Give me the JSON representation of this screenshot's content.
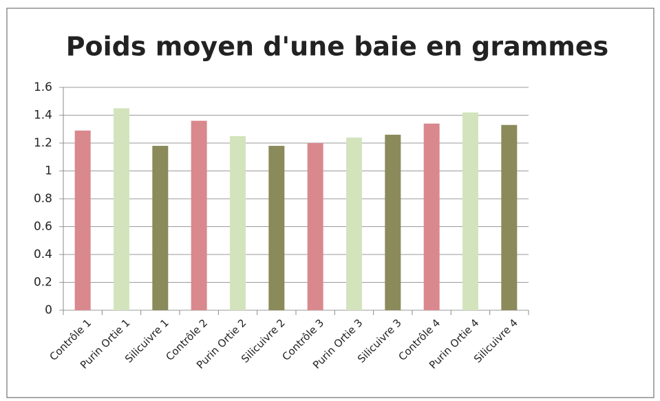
{
  "chart_data": {
    "type": "bar",
    "title": "Poids moyen d'une baie en grammes",
    "categories": [
      "Contrôle 1",
      "Purin Ortie 1",
      "Silicuivre 1",
      "Contrôle 2",
      "Purin Ortie 2",
      "Silicuivre 2",
      "Contrôle 3",
      "Purin Ortie 3",
      "Silicuivre 3",
      "Contrôle 4",
      "Purin Ortie 4",
      "Silicuivre 4"
    ],
    "values": [
      1.29,
      1.45,
      1.18,
      1.36,
      1.25,
      1.18,
      1.2,
      1.24,
      1.26,
      1.34,
      1.42,
      1.33
    ],
    "colors": [
      "#d9888d",
      "#d3e4bd",
      "#8b8a5a",
      "#d9888d",
      "#d3e4bd",
      "#8b8a5a",
      "#d9888d",
      "#d3e4bd",
      "#8b8a5a",
      "#d9888d",
      "#d3e4bd",
      "#8b8a5a"
    ],
    "ylim": [
      0,
      1.6
    ],
    "yticks": [
      0,
      0.2,
      0.4,
      0.6,
      0.8,
      1,
      1.2,
      1.4,
      1.6
    ],
    "grid": true
  }
}
